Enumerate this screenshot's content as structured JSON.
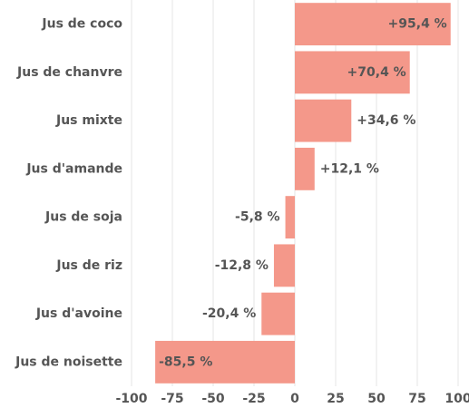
{
  "chart_data": {
    "type": "bar",
    "orientation": "horizontal",
    "categories": [
      "Jus de coco",
      "Jus de chanvre",
      "Jus mixte",
      "Jus d'amande",
      "Jus de soja",
      "Jus de riz",
      "Jus d'avoine",
      "Jus de noisette"
    ],
    "values": [
      95.4,
      70.4,
      34.6,
      12.1,
      -5.8,
      -12.8,
      -20.4,
      -85.5
    ],
    "value_labels": [
      "+95,4 %",
      "+70,4 %",
      "+34,6 %",
      "+12,1 %",
      "-5,8 %",
      "-12,8 %",
      "-20,4 %",
      "-85,5 %"
    ],
    "color": "#f4988a",
    "xlim": [
      -100,
      100
    ],
    "xticks": [
      -100,
      -75,
      -50,
      -25,
      0,
      25,
      50,
      75,
      100
    ],
    "grid": true
  }
}
